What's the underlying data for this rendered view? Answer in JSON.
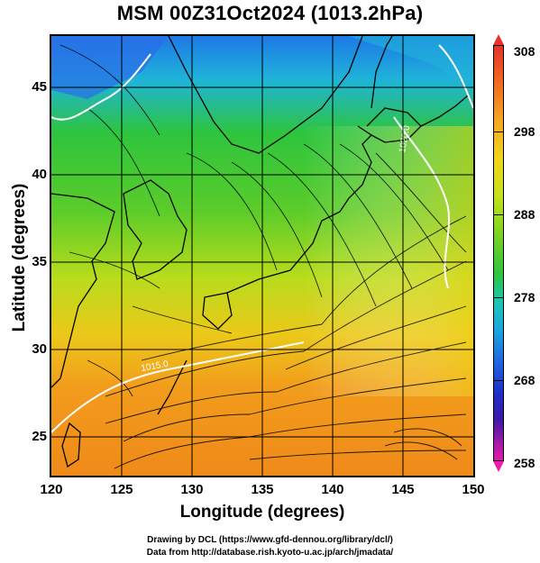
{
  "title": "MSM 00Z31Oct2024 (1013.2hPa)",
  "axes": {
    "xlabel": "Longitude (degrees)",
    "ylabel": "Latitude  (degrees)",
    "xticks": [
      "120",
      "125",
      "130",
      "135",
      "140",
      "145",
      "150"
    ],
    "yticks": [
      "25",
      "30",
      "35",
      "40",
      "45"
    ],
    "xlim": [
      120,
      150
    ],
    "ylim": [
      22.4,
      47.6
    ]
  },
  "colorbar": {
    "ticks": [
      "308",
      "298",
      "288",
      "278",
      "268",
      "258"
    ],
    "range": [
      258,
      308
    ]
  },
  "contour_labels": [
    "1020.0",
    "1015.0"
  ],
  "credits": {
    "line1": "Drawing by DCL (https://www.gfd-dennou.org/library/dcl/)",
    "line2": "Data from http://database.rish.kyoto-u.ac.jp/arch/jmadata/"
  },
  "colors": {
    "warm": "#f08a1a",
    "mid": "#c8e020",
    "cool": "#2ec43e",
    "cold": "#1e78e6",
    "isobar": "#ffffff"
  }
}
